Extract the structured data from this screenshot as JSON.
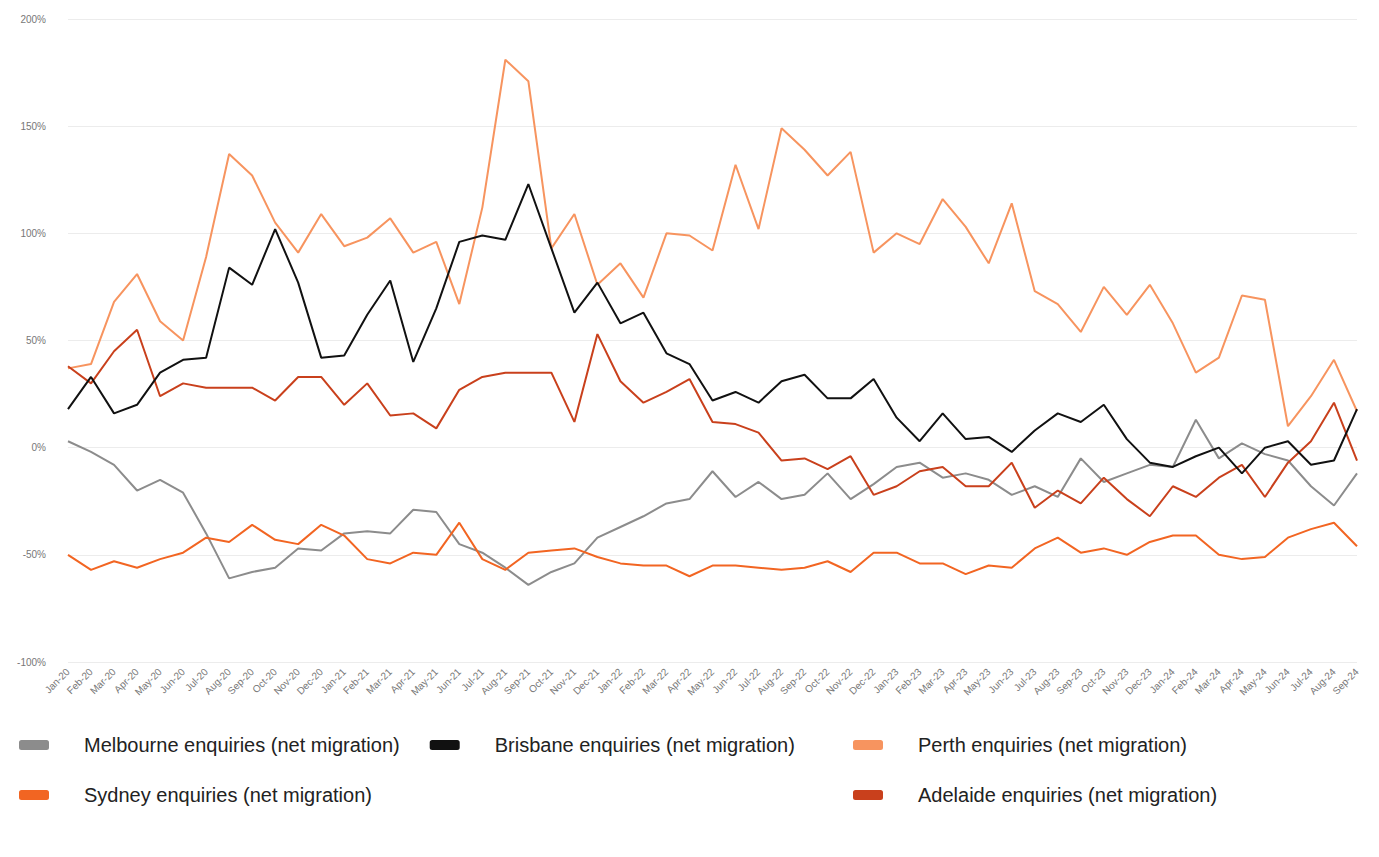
{
  "chart_data": {
    "type": "line",
    "categories": [
      "Jan-20",
      "Feb-20",
      "Mar-20",
      "Apr-20",
      "May-20",
      "Jun-20",
      "Jul-20",
      "Aug-20",
      "Sep-20",
      "Oct-20",
      "Nov-20",
      "Dec-20",
      "Jan-21",
      "Feb-21",
      "Mar-21",
      "Apr-21",
      "May-21",
      "Jun-21",
      "Jul-21",
      "Aug-21",
      "Sep-21",
      "Oct-21",
      "Nov-21",
      "Dec-21",
      "Jan-22",
      "Feb-22",
      "Mar-22",
      "Apr-22",
      "May-22",
      "Jun-22",
      "Jul-22",
      "Aug-22",
      "Sep-22",
      "Oct-22",
      "Nov-22",
      "Dec-22",
      "Jan-23",
      "Feb-23",
      "Mar-23",
      "Apr-23",
      "May-23",
      "Jun-23",
      "Jul-23",
      "Aug-23",
      "Sep-23",
      "Oct-23",
      "Nov-23",
      "Dec-23",
      "Jan-24",
      "Feb-24",
      "Mar-24",
      "Apr-24",
      "May-24",
      "Jun-24",
      "Jul-24",
      "Aug-24",
      "Sep-24"
    ],
    "series": [
      {
        "name": "Melbourne enquiries (net migration)",
        "color": "#8c8c8c",
        "values": [
          3,
          -2,
          -8,
          -20,
          -15,
          -21,
          -40,
          -61,
          -58,
          -56,
          -47,
          -48,
          -40,
          -39,
          -40,
          -29,
          -30,
          -45,
          -49,
          -56,
          -64,
          -58,
          -54,
          -42,
          -37,
          -32,
          -26,
          -24,
          -11,
          -23,
          -16,
          -24,
          -22,
          -12,
          -24,
          -17,
          -9,
          -7,
          -14,
          -12,
          -15,
          -22,
          -18,
          -23,
          -5,
          -16,
          -12,
          -8,
          -9,
          13,
          -5,
          2,
          -3,
          -6,
          -18,
          -27,
          -12
        ]
      },
      {
        "name": "Perth enquiries (net migration)",
        "color": "#f7945f",
        "values": [
          37,
          39,
          68,
          81,
          59,
          50,
          89,
          137,
          127,
          105,
          91,
          109,
          94,
          98,
          107,
          91,
          96,
          67,
          112,
          181,
          171,
          93,
          109,
          76,
          86,
          70,
          100,
          99,
          92,
          132,
          102,
          149,
          139,
          127,
          138,
          91,
          100,
          95,
          116,
          103,
          86,
          114,
          73,
          67,
          54,
          75,
          62,
          76,
          58,
          35,
          42,
          71,
          69,
          10,
          24,
          41,
          17
        ]
      },
      {
        "name": "Sydney enquiries (net migration)",
        "color": "#f26522",
        "values": [
          -50,
          -57,
          -53,
          -56,
          -52,
          -49,
          -42,
          -44,
          -36,
          -43,
          -45,
          -36,
          -41,
          -52,
          -54,
          -49,
          -50,
          -35,
          -52,
          -57,
          -49,
          -48,
          -47,
          -51,
          -54,
          -55,
          -55,
          -60,
          -55,
          -55,
          -56,
          -57,
          -56,
          -53,
          -58,
          -49,
          -49,
          -54,
          -54,
          -59,
          -55,
          -56,
          -47,
          -42,
          -49,
          -47,
          -50,
          -44,
          -41,
          -41,
          -50,
          -52,
          -51,
          -42,
          -38,
          -35,
          -46
        ]
      },
      {
        "name": "Adelaide enquiries (net migration)",
        "color": "#c9401c",
        "values": [
          38,
          30,
          45,
          55,
          24,
          30,
          28,
          28,
          28,
          22,
          33,
          33,
          20,
          30,
          15,
          16,
          9,
          27,
          33,
          35,
          35,
          35,
          12,
          53,
          31,
          21,
          26,
          32,
          12,
          11,
          7,
          -6,
          -5,
          -10,
          -4,
          -22,
          -18,
          -11,
          -9,
          -18,
          -18,
          -7,
          -28,
          -20,
          -26,
          -14,
          -24,
          -32,
          -18,
          -23,
          -14,
          -8,
          -23,
          -7,
          3,
          21,
          -6
        ]
      },
      {
        "name": "Brisbane enquiries (net migration)",
        "color": "#111111",
        "values": [
          18,
          33,
          16,
          20,
          35,
          41,
          42,
          84,
          76,
          102,
          77,
          42,
          43,
          62,
          78,
          40,
          65,
          96,
          99,
          97,
          123,
          93,
          63,
          77,
          58,
          63,
          44,
          39,
          22,
          26,
          21,
          31,
          34,
          23,
          23,
          32,
          14,
          3,
          16,
          4,
          5,
          -2,
          8,
          16,
          12,
          20,
          4,
          -7,
          -9,
          -4,
          0,
          -12,
          0,
          3,
          -8,
          -6,
          18
        ]
      }
    ],
    "ylim": [
      -100,
      200
    ],
    "yticks": [
      {
        "value": -100,
        "label": "-100%"
      },
      {
        "value": -50,
        "label": "-50%"
      },
      {
        "value": 0,
        "label": "0%"
      },
      {
        "value": 50,
        "label": "50%"
      },
      {
        "value": 100,
        "label": "100%"
      },
      {
        "value": 150,
        "label": "150%"
      },
      {
        "value": 200,
        "label": "200%"
      }
    ],
    "grid": true,
    "legend": "bottom"
  }
}
